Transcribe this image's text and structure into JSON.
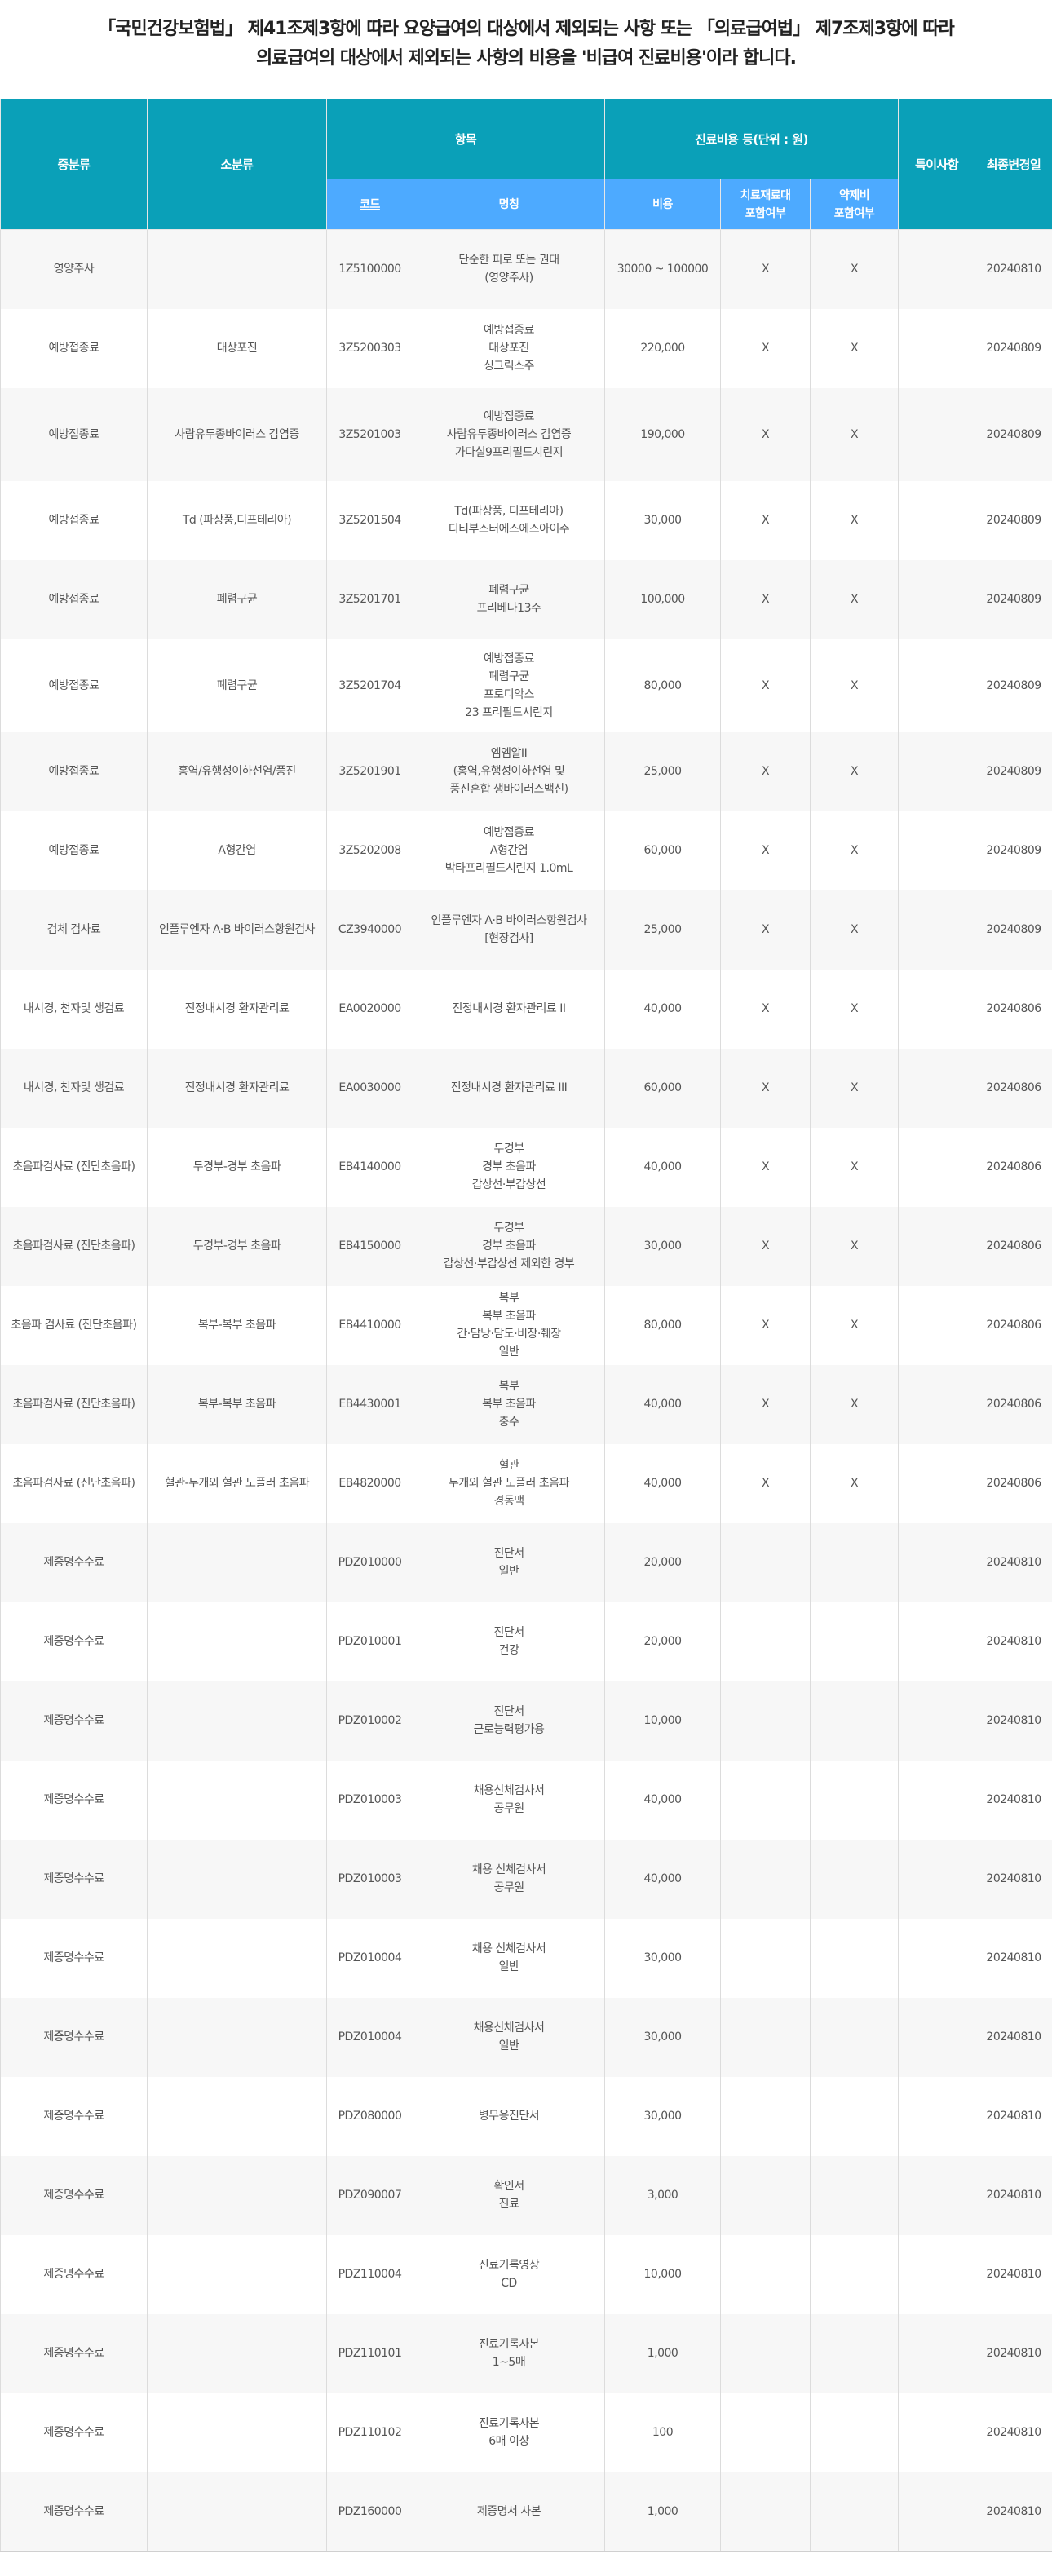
{
  "intro": {
    "line1": "「국민건강보험법」 제41조제3항에 따라 요양급여의 대상에서 제외되는 사항 또는 「의료급여법」 제7조제3항에 따라",
    "line2": "의료급여의 대상에서 제외되는 사항의 비용을 '비급여 진료비용'이라 합니다."
  },
  "colors": {
    "header_teal": "#0aa0b8",
    "header_blue": "#4daaff",
    "row_alt": "#f7f7f7"
  },
  "table": {
    "headers": {
      "mid_category": "중분류",
      "sub_category": "소분류",
      "item": "항목",
      "cost_group": "진료비용 등(단위 : 원)",
      "notes": "특이사항",
      "last_modified": "최종변경일",
      "code": "코드",
      "name": "명칭",
      "cost": "비용",
      "material_included": [
        "치료재료대",
        "포함여부"
      ],
      "drug_included": [
        "약제비",
        "포함여부"
      ]
    },
    "rows": [
      {
        "mid": "영양주사",
        "sub": "",
        "code": "1Z5100000",
        "name": [
          "단순한 피로 또는 권태",
          "(영양주사)"
        ],
        "cost": "30000 ~ 100000",
        "mat": "X",
        "drug": "X",
        "note": "",
        "date": "20240810"
      },
      {
        "mid": "예방접종료",
        "sub": "대상포진",
        "code": "3Z5200303",
        "name": [
          "예방접종료",
          "대상포진",
          "싱그릭스주"
        ],
        "cost": "220,000",
        "mat": "X",
        "drug": "X",
        "note": "",
        "date": "20240809"
      },
      {
        "mid": "예방접종료",
        "sub": "사람유두종바이러스 감염증",
        "code": "3Z5201003",
        "name": [
          "예방접종료",
          "사람유두종바이러스 감염증",
          "가다실9프리필드시린지"
        ],
        "cost": "190,000",
        "mat": "X",
        "drug": "X",
        "note": "",
        "date": "20240809",
        "tall": true
      },
      {
        "mid": "예방접종료",
        "sub": "Td (파상풍,디프테리아)",
        "code": "3Z5201504",
        "name": [
          "Td(파상풍, 디프테리아)",
          "디티부스터에스에스아이주"
        ],
        "cost": "30,000",
        "mat": "X",
        "drug": "X",
        "note": "",
        "date": "20240809"
      },
      {
        "mid": "예방접종료",
        "sub": "폐렴구균",
        "code": "3Z5201701",
        "name": [
          "폐렴구균",
          "프리베나13주"
        ],
        "cost": "100,000",
        "mat": "X",
        "drug": "X",
        "note": "",
        "date": "20240809"
      },
      {
        "mid": "예방접종료",
        "sub": "폐렴구균",
        "code": "3Z5201704",
        "name": [
          "예방접종료",
          "폐렴구균",
          "프로디악스",
          "23 프리필드시린지"
        ],
        "cost": "80,000",
        "mat": "X",
        "drug": "X",
        "note": "",
        "date": "20240809",
        "tall": true
      },
      {
        "mid": "예방접종료",
        "sub": "홍역/유행성이하선염/풍진",
        "code": "3Z5201901",
        "name": [
          "엠엠알II",
          "(홍역,유행성이하선염 및",
          "풍진혼합 생바이러스백신)"
        ],
        "cost": "25,000",
        "mat": "X",
        "drug": "X",
        "note": "",
        "date": "20240809"
      },
      {
        "mid": "예방접종료",
        "sub": "A형간염",
        "code": "3Z5202008",
        "name": [
          "예방접종료",
          "A형간염",
          "박타프리필드시린지 1.0mL"
        ],
        "cost": "60,000",
        "mat": "X",
        "drug": "X",
        "note": "",
        "date": "20240809"
      },
      {
        "mid": "검체 검사료",
        "sub": "인플루엔자 A·B 바이러스항원검사",
        "code": "CZ3940000",
        "name": [
          "인플루엔자 A·B 바이러스항원검사",
          "[현장검사]"
        ],
        "cost": "25,000",
        "mat": "X",
        "drug": "X",
        "note": "",
        "date": "20240809"
      },
      {
        "mid": "내시경, 천자및 생검료",
        "sub": "진정내시경 환자관리료",
        "code": "EA0020000",
        "name": [
          "진정내시경 환자관리료 II"
        ],
        "cost": "40,000",
        "mat": "X",
        "drug": "X",
        "note": "",
        "date": "20240806"
      },
      {
        "mid": "내시경, 천자및 생검료",
        "sub": "진정내시경 환자관리료",
        "code": "EA0030000",
        "name": [
          "진정내시경 환자관리료 III"
        ],
        "cost": "60,000",
        "mat": "X",
        "drug": "X",
        "note": "",
        "date": "20240806"
      },
      {
        "mid": "초음파검사료 (진단초음파)",
        "sub": "두경부-경부 초음파",
        "code": "EB4140000",
        "name": [
          "두경부",
          "경부 초음파",
          "갑상선·부갑상선"
        ],
        "cost": "40,000",
        "mat": "X",
        "drug": "X",
        "note": "",
        "date": "20240806"
      },
      {
        "mid": "초음파검사료 (진단초음파)",
        "sub": "두경부-경부 초음파",
        "code": "EB4150000",
        "name": [
          "두경부",
          "경부 초음파",
          "갑상선·부갑상선 제외한 경부"
        ],
        "cost": "30,000",
        "mat": "X",
        "drug": "X",
        "note": "",
        "date": "20240806"
      },
      {
        "mid": "초음파 검사료 (진단초음파)",
        "sub": "복부-복부 초음파",
        "code": "EB4410000",
        "name": [
          "복부",
          "복부 초음파",
          "간·담낭·담도·비장·췌장",
          "일반"
        ],
        "cost": "80,000",
        "mat": "X",
        "drug": "X",
        "note": "",
        "date": "20240806"
      },
      {
        "mid": "초음파검사료 (진단초음파)",
        "sub": "복부-복부 초음파",
        "code": "EB4430001",
        "name": [
          "복부",
          "복부 초음파",
          "충수"
        ],
        "cost": "40,000",
        "mat": "X",
        "drug": "X",
        "note": "",
        "date": "20240806"
      },
      {
        "mid": "초음파검사료 (진단초음파)",
        "sub": "혈관-두개외 혈관 도플러 초음파",
        "code": "EB4820000",
        "name": [
          "혈관",
          "두개외 혈관 도플러 초음파",
          "경동맥"
        ],
        "cost": "40,000",
        "mat": "X",
        "drug": "X",
        "note": "",
        "date": "20240806"
      },
      {
        "mid": "제증명수수료",
        "sub": "",
        "code": "PDZ010000",
        "name": [
          "진단서",
          "일반"
        ],
        "cost": "20,000",
        "mat": "",
        "drug": "",
        "note": "",
        "date": "20240810"
      },
      {
        "mid": "제증명수수료",
        "sub": "",
        "code": "PDZ010001",
        "name": [
          "진단서",
          "건강"
        ],
        "cost": "20,000",
        "mat": "",
        "drug": "",
        "note": "",
        "date": "20240810"
      },
      {
        "mid": "제증명수수료",
        "sub": "",
        "code": "PDZ010002",
        "name": [
          "진단서",
          "근로능력평가용"
        ],
        "cost": "10,000",
        "mat": "",
        "drug": "",
        "note": "",
        "date": "20240810"
      },
      {
        "mid": "제증명수수료",
        "sub": "",
        "code": "PDZ010003",
        "name": [
          "채용신체검사서",
          "공무원"
        ],
        "cost": "40,000",
        "mat": "",
        "drug": "",
        "note": "",
        "date": "20240810"
      },
      {
        "mid": "제증명수수료",
        "sub": "",
        "code": "PDZ010003",
        "name": [
          "채용 신체검사서",
          "공무원"
        ],
        "cost": "40,000",
        "mat": "",
        "drug": "",
        "note": "",
        "date": "20240810"
      },
      {
        "mid": "제증명수수료",
        "sub": "",
        "code": "PDZ010004",
        "name": [
          "채용 신체검사서",
          "일반"
        ],
        "cost": "30,000",
        "mat": "",
        "drug": "",
        "note": "",
        "date": "20240810"
      },
      {
        "mid": "제증명수수료",
        "sub": "",
        "code": "PDZ010004",
        "name": [
          "채용신체검사서",
          "일반"
        ],
        "cost": "30,000",
        "mat": "",
        "drug": "",
        "note": "",
        "date": "20240810"
      },
      {
        "mid": "제증명수수료",
        "sub": "",
        "code": "PDZ080000",
        "name": [
          "병무용진단서"
        ],
        "cost": "30,000",
        "mat": "",
        "drug": "",
        "note": "",
        "date": "20240810"
      },
      {
        "mid": "제증명수수료",
        "sub": "",
        "code": "PDZ090007",
        "name": [
          "확인서",
          "진료"
        ],
        "cost": "3,000",
        "mat": "",
        "drug": "",
        "note": "",
        "date": "20240810"
      },
      {
        "mid": "제증명수수료",
        "sub": "",
        "code": "PDZ110004",
        "name": [
          "진료기록영상",
          "CD"
        ],
        "cost": "10,000",
        "mat": "",
        "drug": "",
        "note": "",
        "date": "20240810"
      },
      {
        "mid": "제증명수수료",
        "sub": "",
        "code": "PDZ110101",
        "name": [
          "진료기록사본",
          "1~5매"
        ],
        "cost": "1,000",
        "mat": "",
        "drug": "",
        "note": "",
        "date": "20240810"
      },
      {
        "mid": "제증명수수료",
        "sub": "",
        "code": "PDZ110102",
        "name": [
          "진료기록사본",
          "6매 이상"
        ],
        "cost": "100",
        "mat": "",
        "drug": "",
        "note": "",
        "date": "20240810"
      },
      {
        "mid": "제증명수수료",
        "sub": "",
        "code": "PDZ160000",
        "name": [
          "제증명서 사본"
        ],
        "cost": "1,000",
        "mat": "",
        "drug": "",
        "note": "",
        "date": "20240810"
      }
    ]
  }
}
